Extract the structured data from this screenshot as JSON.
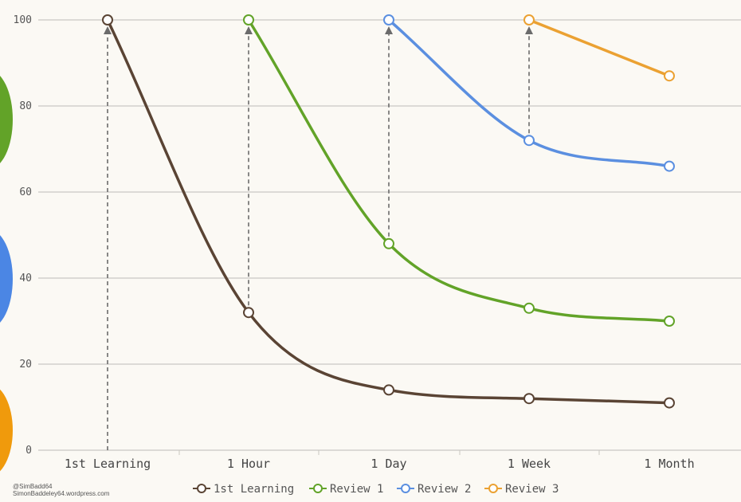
{
  "chart_data": {
    "type": "line",
    "categories": [
      "1st Learning",
      "1 Hour",
      "1 Day",
      "1 Week",
      "1 Month"
    ],
    "ylim": [
      0,
      100
    ],
    "yticks": [
      0,
      20,
      40,
      60,
      80,
      100
    ],
    "grid": true,
    "legend_position": "bottom",
    "series": [
      {
        "name": "1st Learning",
        "color": "#5a4434",
        "x": [
          0,
          1,
          2,
          3,
          4
        ],
        "values": [
          100,
          32,
          14,
          12,
          11
        ]
      },
      {
        "name": "Review 1",
        "color": "#62a328",
        "x": [
          1,
          2,
          3,
          4
        ],
        "values": [
          100,
          48,
          33,
          30
        ]
      },
      {
        "name": "Review 2",
        "color": "#5b8fe0",
        "x": [
          2,
          3,
          4
        ],
        "values": [
          100,
          72,
          66
        ]
      },
      {
        "name": "Review 3",
        "color": "#eba132",
        "x": [
          3,
          4
        ],
        "values": [
          100,
          87
        ]
      }
    ],
    "review_arrows": [
      {
        "category_index": 0,
        "from": 0,
        "to": 100
      },
      {
        "category_index": 1,
        "from": 32,
        "to": 100
      },
      {
        "category_index": 2,
        "from": 48,
        "to": 100
      },
      {
        "category_index": 3,
        "from": 72,
        "to": 100
      }
    ]
  },
  "credit": {
    "line1": "@SimBadd64",
    "line2": "SimonBaddeley64.wordpress.com"
  },
  "side_blobs": [
    {
      "color": "#62a328"
    },
    {
      "color": "#4b86e4"
    },
    {
      "color": "#f09a0c"
    }
  ]
}
